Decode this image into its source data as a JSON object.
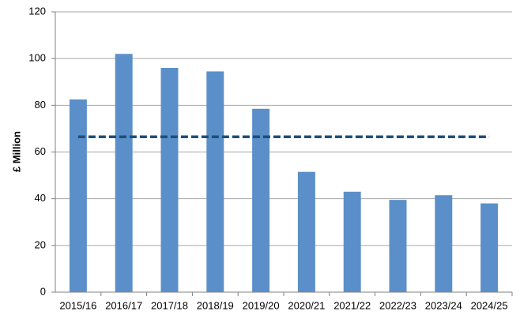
{
  "chart_data": {
    "type": "bar",
    "y_label": "£ Million",
    "categories": [
      "2015/16",
      "2016/17",
      "2017/18",
      "2018/19",
      "2019/20",
      "2020/21",
      "2021/22",
      "2022/23",
      "2023/24",
      "2024/25"
    ],
    "series": [
      {
        "color": "#5b8fc9",
        "values": [
          82.5,
          102,
          96,
          94.5,
          78.5,
          51.5,
          43,
          39.5,
          41.5,
          38
        ]
      },
      {
        "type": "line",
        "dashed": true,
        "color": "#1f4e79",
        "values": [
          66.5,
          66.5,
          66.5,
          66.5,
          66.5,
          66.5,
          66.5,
          66.5,
          66.5,
          66.5
        ]
      }
    ],
    "ylim": [
      0,
      120
    ],
    "yticks": [
      0,
      20,
      40,
      60,
      80,
      100,
      120
    ],
    "grid": true
  }
}
